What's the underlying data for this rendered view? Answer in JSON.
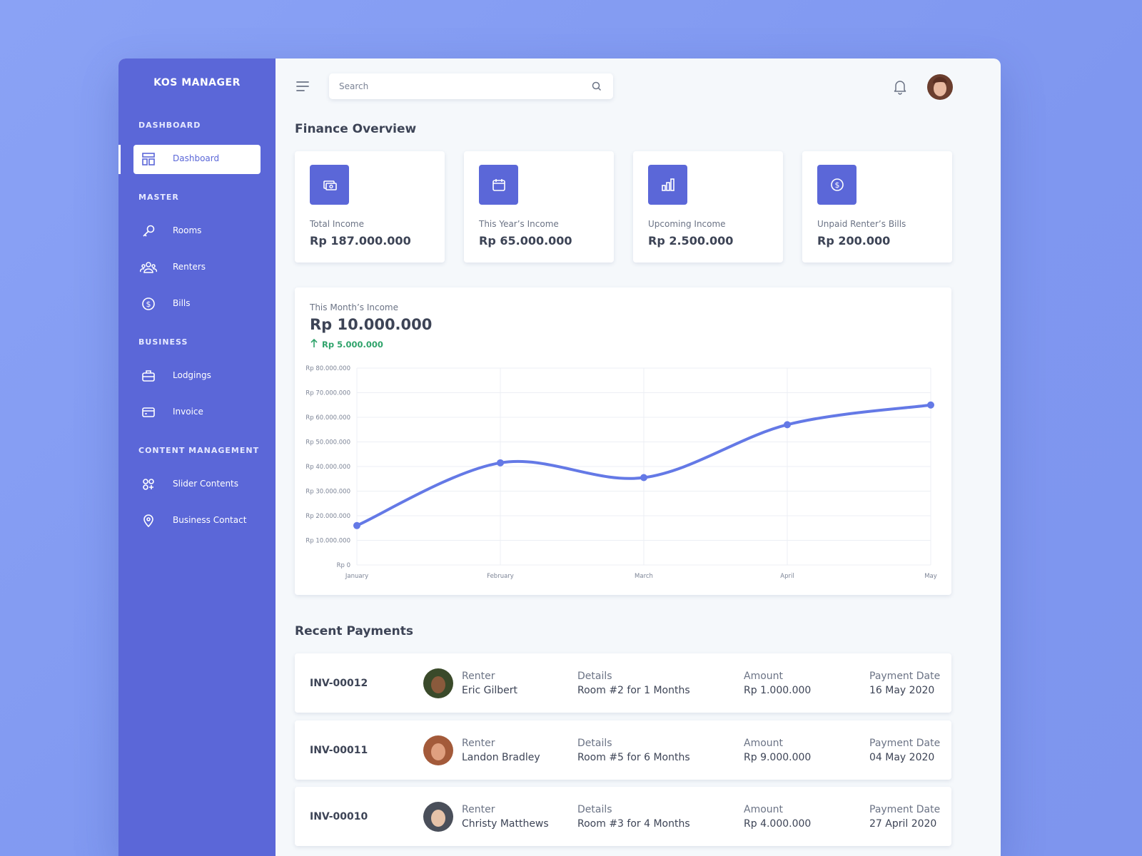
{
  "sidebar": {
    "brand": "KOS MANAGER",
    "sections": [
      {
        "title": "DASHBOARD",
        "items": [
          "Dashboard"
        ]
      },
      {
        "title": "MASTER",
        "items": [
          "Rooms",
          "Renters",
          "Bills"
        ]
      },
      {
        "title": "BUSINESS",
        "items": [
          "Lodgings",
          "Invoice"
        ]
      },
      {
        "title": "CONTENT MANAGEMENT",
        "items": [
          "Slider Contents",
          "Business Contact"
        ]
      }
    ]
  },
  "header": {
    "search_placeholder": "Search"
  },
  "overview": {
    "title": "Finance Overview",
    "cards": [
      {
        "label": "Total Income",
        "value": "Rp 187.000.000"
      },
      {
        "label": "This Year’s Income",
        "value": "Rp 65.000.000"
      },
      {
        "label": "Upcoming Income",
        "value": "Rp 2.500.000"
      },
      {
        "label": "Unpaid Renter’s Bills",
        "value": "Rp 200.000"
      }
    ]
  },
  "chart_data": {
    "type": "line",
    "title": "This Month’s Income",
    "headline": "Rp 10.000.000",
    "change": "Rp 5.000.000",
    "categories": [
      "January",
      "February",
      "March",
      "April",
      "May"
    ],
    "values": [
      16000000,
      41500000,
      35500000,
      57000000,
      65000000
    ],
    "color": "#6479e6",
    "ylim": [
      0,
      80000000
    ],
    "yticks": [
      {
        "value": 0,
        "label": "Rp 0"
      },
      {
        "value": 10000000,
        "label": "Rp 10.000.000"
      },
      {
        "value": 20000000,
        "label": "Rp 20.000.000"
      },
      {
        "value": 30000000,
        "label": "Rp 30.000.000"
      },
      {
        "value": 40000000,
        "label": "Rp 40.000.000"
      },
      {
        "value": 50000000,
        "label": "Rp 50.000.000"
      },
      {
        "value": 60000000,
        "label": "Rp 60.000.000"
      },
      {
        "value": 70000000,
        "label": "Rp 70.000.000"
      },
      {
        "value": 80000000,
        "label": "Rp 80.000.000"
      }
    ],
    "grid": true
  },
  "payments": {
    "title": "Recent Payments",
    "columns": {
      "renter": "Renter",
      "details": "Details",
      "amount": "Amount",
      "date": "Payment Date"
    },
    "rows": [
      {
        "invoice": "INV-00012",
        "renter": "Eric Gilbert",
        "details": "Room #2 for 1 Months",
        "amount": "Rp 1.000.000",
        "date": "16 May 2020"
      },
      {
        "invoice": "INV-00011",
        "renter": "Landon Bradley",
        "details": "Room #5 for 6 Months",
        "amount": "Rp 9.000.000",
        "date": "04 May 2020"
      },
      {
        "invoice": "INV-00010",
        "renter": "Christy Matthews",
        "details": "Room #3 for 4 Months",
        "amount": "Rp 4.000.000",
        "date": "27 April 2020"
      }
    ]
  }
}
